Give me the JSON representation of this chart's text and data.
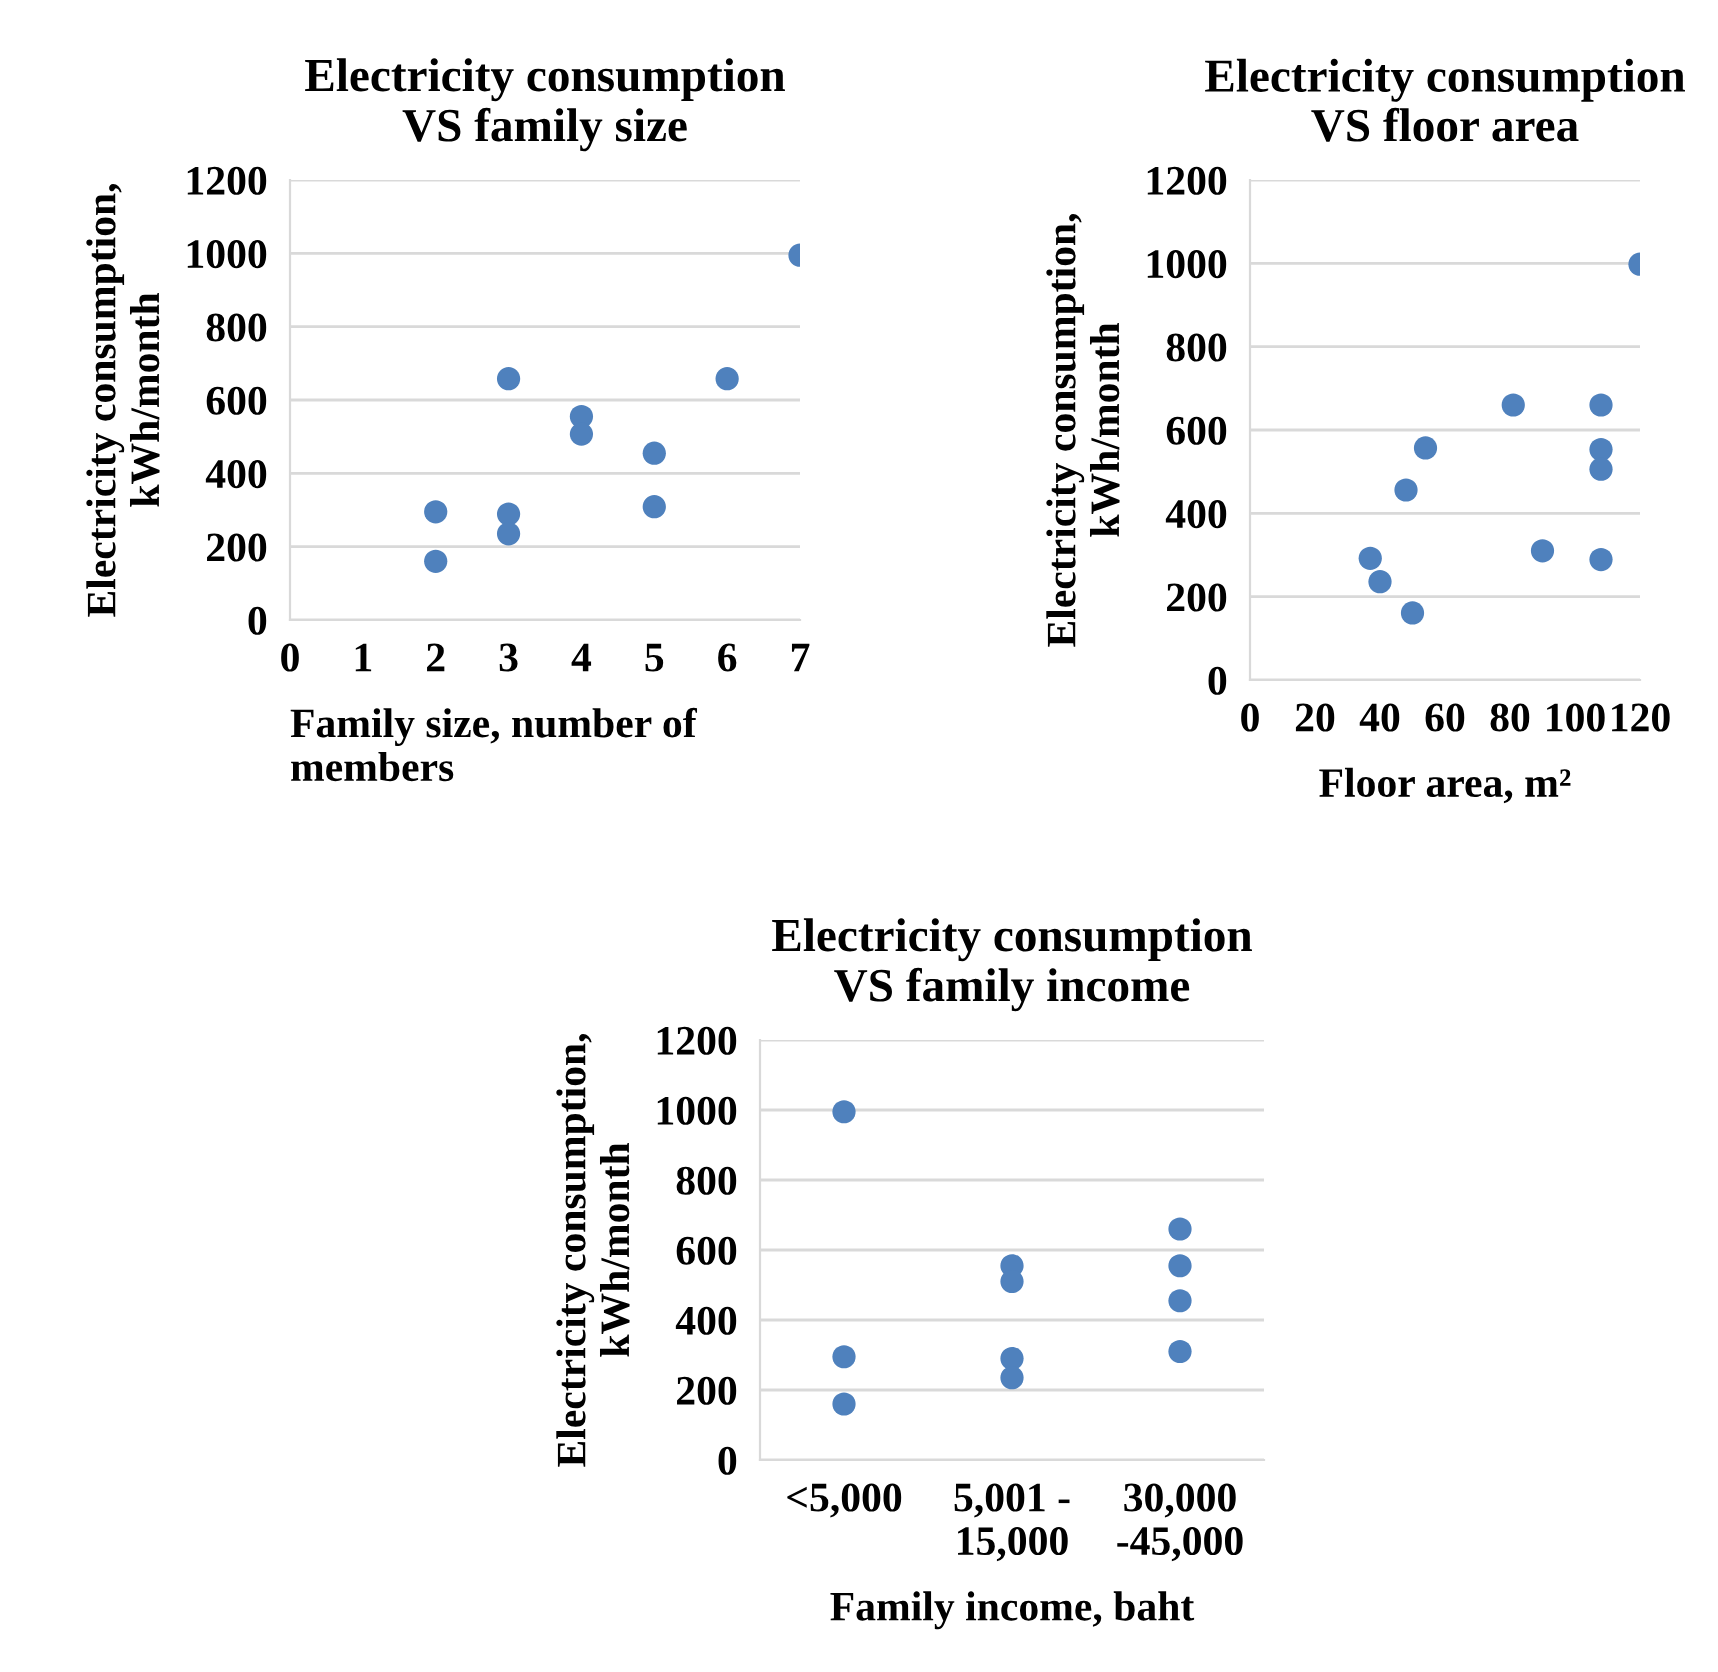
{
  "chart_data": [
    {
      "type": "scatter",
      "title": "Electricity consumption\nVS family size",
      "xlabel": "Family size, number of\nmembers",
      "ylabel": "Electricity consumption,\nkWh/month",
      "xlim": [
        0,
        7
      ],
      "xticks": [
        0,
        1,
        2,
        3,
        4,
        5,
        6,
        7
      ],
      "ylim": [
        0,
        1200
      ],
      "yticks": [
        0,
        200,
        400,
        600,
        800,
        1000,
        1200
      ],
      "grid": "y",
      "marker": "circle",
      "x": [
        2,
        2,
        3,
        3,
        3,
        4,
        4,
        5,
        5,
        6,
        7
      ],
      "series": [
        {
          "color": "#4f81bd",
          "values": [
            295,
            160,
            658,
            289,
            235,
            555,
            507,
            455,
            309,
            658,
            995
          ]
        }
      ]
    },
    {
      "type": "scatter",
      "title": "Electricity consumption\nVS floor area",
      "xlabel": "Floor area, m²",
      "ylabel": "Electricity consumption,\nkWh/month",
      "xlim": [
        0,
        120
      ],
      "xticks": [
        0,
        20,
        40,
        60,
        80,
        100,
        120
      ],
      "ylim": [
        0,
        1200
      ],
      "yticks": [
        0,
        200,
        400,
        600,
        800,
        1000,
        1200
      ],
      "grid": "y",
      "marker": "circle",
      "x": [
        37,
        40,
        48,
        50,
        54,
        81,
        90,
        108,
        108,
        108,
        108,
        120
      ],
      "series": [
        {
          "color": "#4f81bd",
          "values": [
            292,
            236,
            456,
            161,
            557,
            660,
            310,
            660,
            553,
            506,
            289,
            998
          ]
        }
      ]
    },
    {
      "type": "scatter",
      "title": "Electricity consumption\nVS family income",
      "xlabel": "Family income, baht",
      "ylabel": "Electricity consumption,\nkWh/month",
      "categories": [
        "<5,000",
        "5,001 -\n15,000",
        "30,000\n-45,000"
      ],
      "ylim": [
        0,
        1200
      ],
      "yticks": [
        0,
        200,
        400,
        600,
        800,
        1000,
        1200
      ],
      "grid": "y",
      "marker": "circle",
      "series": [
        {
          "color": "#4f81bd",
          "values": [
            995,
            555,
            660
          ]
        },
        {
          "color": "#4f81bd",
          "values": [
            295,
            510,
            555
          ]
        },
        {
          "color": "#4f81bd",
          "values": [
            160,
            290,
            455
          ]
        },
        {
          "color": "#4f81bd",
          "values": [
            null,
            235,
            310
          ]
        }
      ]
    }
  ]
}
